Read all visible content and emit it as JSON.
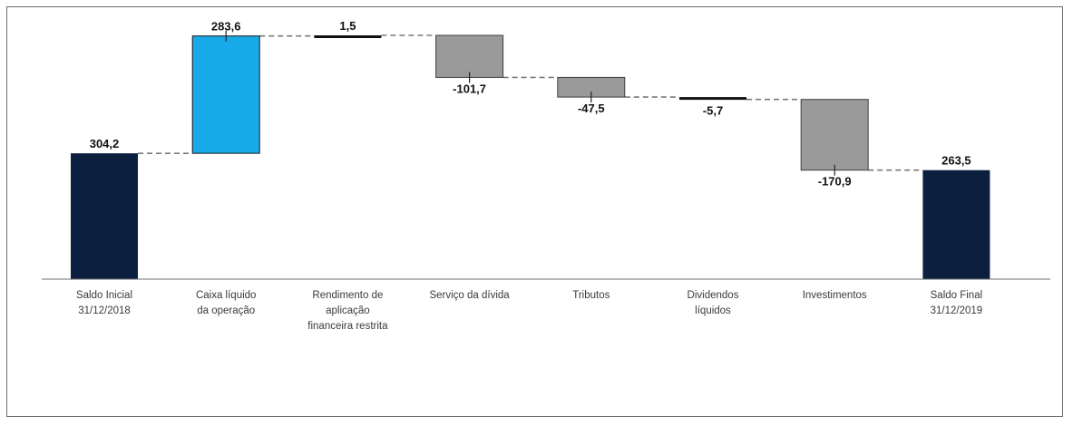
{
  "chart_data": {
    "type": "waterfall",
    "title": "",
    "xlabel": "",
    "ylabel": "",
    "ylim": [
      0,
      600
    ],
    "grid": false,
    "legend": "none",
    "categories": [
      [
        "Saldo Inicial",
        "31/12/2018"
      ],
      [
        "Caixa líquido",
        "da operação"
      ],
      [
        "Rendimento de",
        "aplicação",
        "financeira restrita"
      ],
      [
        "Serviço da dívida"
      ],
      [
        "Tributos"
      ],
      [
        "Dividendos",
        "líquidos"
      ],
      [
        "Investimentos"
      ],
      [
        "Saldo Final",
        "31/12/2019"
      ]
    ],
    "values": [
      304.2,
      283.6,
      1.5,
      -101.7,
      -47.5,
      -5.7,
      -170.9,
      263.5
    ],
    "value_labels": [
      "304,2",
      "283,6",
      "1,5",
      "-101,7",
      "-47,5",
      "-5,7",
      "-170,9",
      "263,5"
    ],
    "kinds": [
      "total",
      "increase",
      "increase",
      "decrease",
      "decrease",
      "decrease",
      "decrease",
      "total"
    ],
    "colors": {
      "total": "#0d1f3f",
      "increase": "#18a9e8",
      "decrease": "#9a9a9a",
      "small_bar": "#111111",
      "connector": "#7a7a7a",
      "axis": "#6d6d6d"
    }
  }
}
